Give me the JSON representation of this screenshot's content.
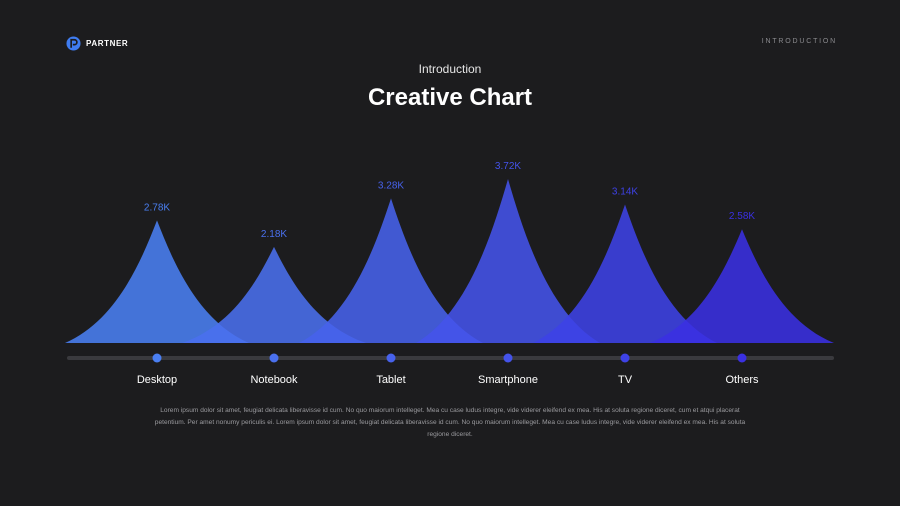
{
  "brand": {
    "name": "PARTNER",
    "color": "#3f7cf0"
  },
  "header": {
    "section": "INTRODUCTION"
  },
  "heading": {
    "subtitle": "Introduction",
    "title": "Creative Chart"
  },
  "chart_data": {
    "type": "area",
    "categories": [
      "Desktop",
      "Notebook",
      "Tablet",
      "Smartphone",
      "TV",
      "Others"
    ],
    "values": [
      2.78,
      2.18,
      3.28,
      3.72,
      3.14,
      2.58
    ],
    "labels": [
      "2.78K",
      "2.18K",
      "3.28K",
      "3.72K",
      "3.14K",
      "2.58K"
    ],
    "colors": [
      "#4a7ff2",
      "#4a70ee",
      "#4762ec",
      "#4453ea",
      "#3e42e6",
      "#3a30e2"
    ],
    "ylim": [
      0,
      4
    ],
    "grid": false
  },
  "description": "Lorem ipsum dolor sit amet, feugiat delicata liberavisse id cum. No quo maiorum intelleget. Mea cu case ludus integre, vide viderer eleifend ex mea. His at soluta regione diceret, cum et atqui placerat petentium. Per amet nonumy periculis ei. Lorem ipsum dolor sit amet, feugiat delicata liberavisse id cum. No quo maiorum intelleget. Mea cu case ludus integre, vide viderer eleifend ex mea. His at soluta regione diceret."
}
